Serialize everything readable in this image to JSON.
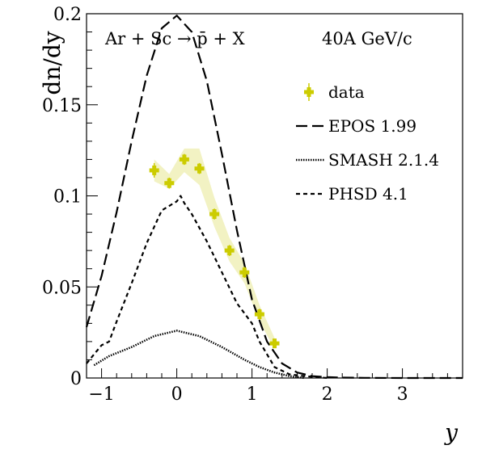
{
  "chart_data": {
    "type": "line",
    "title": "",
    "xlabel": "y",
    "ylabel": "dn/dy",
    "xlim": [
      -1.2,
      3.8
    ],
    "ylim": [
      0,
      0.2
    ],
    "x_ticks": [
      -1,
      0,
      1,
      2,
      3
    ],
    "y_ticks": [
      0,
      0.05,
      0.1,
      0.15,
      0.2
    ],
    "x_tick_labels": [
      "−1",
      "0",
      "1",
      "2",
      "3"
    ],
    "y_tick_labels": [
      "0",
      "0.05",
      "0.1",
      "0.15",
      "0.2"
    ],
    "annotations": {
      "reaction": "Ar + Sc → p̄ + X",
      "energy": "40A GeV/c"
    },
    "legend": {
      "position": "right",
      "entries": [
        "data",
        "EPOS 1.99",
        "SMASH 2.1.4",
        "PHSD 4.1"
      ]
    },
    "series": [
      {
        "name": "data",
        "style": "markers",
        "color": "#cccc00",
        "x": [
          -0.3,
          -0.1,
          0.1,
          0.3,
          0.5,
          0.7,
          0.9,
          1.1,
          1.3
        ],
        "y": [
          0.114,
          0.107,
          0.12,
          0.115,
          0.09,
          0.07,
          0.058,
          0.035,
          0.019
        ],
        "err": [
          0.004,
          0.003,
          0.003,
          0.003,
          0.003,
          0.003,
          0.003,
          0.003,
          0.002
        ],
        "band_low": [
          0.108,
          0.104,
          0.113,
          0.106,
          0.083,
          0.064,
          0.052,
          0.031,
          0.016
        ],
        "band_high": [
          0.12,
          0.112,
          0.126,
          0.126,
          0.099,
          0.077,
          0.063,
          0.04,
          0.022
        ]
      },
      {
        "name": "EPOS 1.99",
        "style": "dashed",
        "color": "#000000",
        "x": [
          -1.2,
          -1.0,
          -0.8,
          -0.6,
          -0.4,
          -0.2,
          0.0,
          0.2,
          0.4,
          0.6,
          0.8,
          1.0,
          1.2,
          1.4,
          1.6,
          1.8,
          2.0,
          2.2,
          2.5,
          3.0,
          3.8
        ],
        "y": [
          0.028,
          0.056,
          0.091,
          0.13,
          0.166,
          0.192,
          0.199,
          0.19,
          0.163,
          0.123,
          0.081,
          0.043,
          0.02,
          0.008,
          0.003,
          0.001,
          0.0005,
          0.0002,
          0.0001,
          0.0,
          0.0
        ]
      },
      {
        "name": "SMASH 2.1.4",
        "style": "dotted",
        "color": "#000000",
        "x": [
          -1.1,
          -0.9,
          -0.6,
          -0.3,
          0.0,
          0.3,
          0.6,
          0.9,
          1.1,
          1.3,
          1.5,
          1.7
        ],
        "y": [
          0.007,
          0.012,
          0.017,
          0.023,
          0.026,
          0.023,
          0.017,
          0.01,
          0.006,
          0.003,
          0.001,
          0.0
        ]
      },
      {
        "name": "PHSD 4.1",
        "style": "dashed-short",
        "color": "#000000",
        "x": [
          -1.2,
          -1.1,
          -1.0,
          -0.9,
          -0.8,
          -0.6,
          -0.4,
          -0.2,
          0.0,
          0.05,
          0.1,
          0.2,
          0.4,
          0.6,
          0.8,
          1.0,
          1.1,
          1.3,
          1.5,
          1.7,
          2.0
        ],
        "y": [
          0.008,
          0.013,
          0.018,
          0.02,
          0.031,
          0.052,
          0.074,
          0.092,
          0.097,
          0.1,
          0.096,
          0.09,
          0.075,
          0.058,
          0.041,
          0.03,
          0.02,
          0.006,
          0.002,
          0.001,
          0.0
        ]
      }
    ]
  }
}
